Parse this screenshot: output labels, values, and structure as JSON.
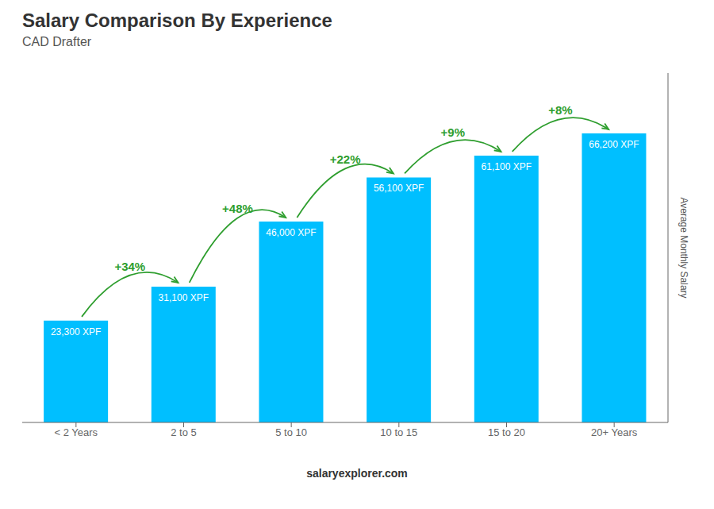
{
  "chart_data": {
    "type": "bar",
    "title": "Salary Comparison By Experience",
    "subtitle": "CAD Drafter",
    "categories": [
      "< 2 Years",
      "2 to 5",
      "5 to 10",
      "10 to 15",
      "15 to 20",
      "20+ Years"
    ],
    "values": [
      23300,
      31100,
      46000,
      56100,
      61100,
      66200
    ],
    "value_labels": [
      "23,300 XPF",
      "31,100 XPF",
      "46,000 XPF",
      "56,100 XPF",
      "61,100 XPF",
      "66,200 XPF"
    ],
    "data_labels": true,
    "color": "#00BFFF",
    "ylim": [
      0,
      80000
    ],
    "y_label": "Average Monthly Salary",
    "tick_labels": "x",
    "annotations": [
      "+34%",
      "+48%",
      "+22%",
      "+9%",
      "+8%"
    ],
    "footer": "salaryexplorer.com"
  }
}
